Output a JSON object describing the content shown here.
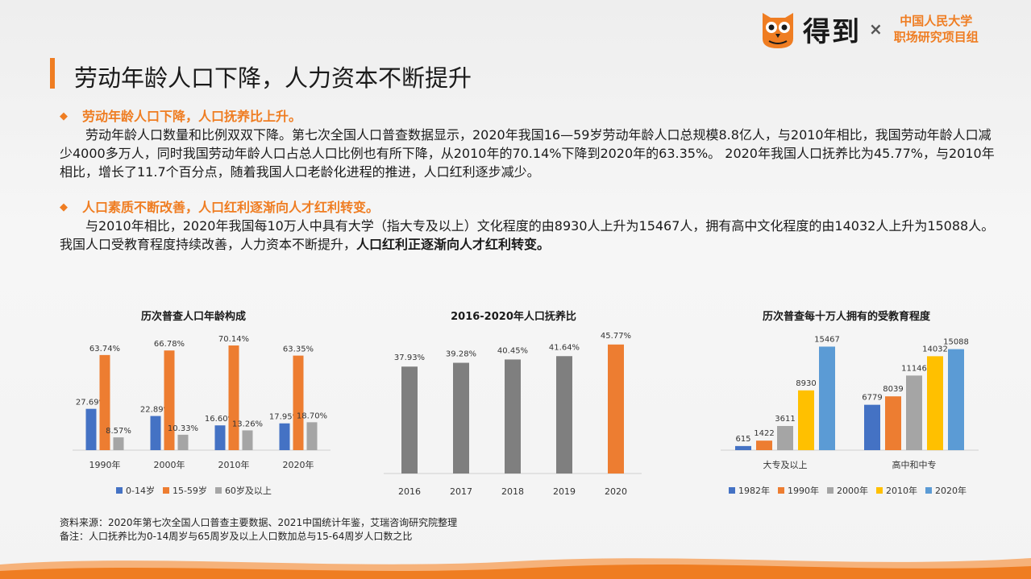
{
  "header": {
    "logo_text": "得到",
    "cross": "×",
    "partner_line1": "中国人民大学",
    "partner_line2": "职场研究项目组"
  },
  "page_title": "劳动年龄人口下降，人力资本不断提升",
  "sections": [
    {
      "heading": "劳动年龄人口下降，人口抚养比上升。",
      "text": "劳动年龄人口数量和比例双双下降。第七次全国人口普查数据显示，2020年我国16—59岁劳动年龄人口总规模8.8亿人，与2010年相比，我国劳动年龄人口减少4000多万人，同时我国劳动年龄人口占总人口比例也有所下降，从2010年的70.14%下降到2020年的63.35%。 2020年我国人口抚养比为45.77%，与2010年相比，增长了11.7个百分点，随着我国人口老龄化进程的推进，人口红利逐步减少。"
    },
    {
      "heading": "人口素质不断改善，人口红利逐渐向人才红利转变。",
      "text": "与2010年相比，2020年我国每10万人中具有大学（指大专及以上）文化程度的由8930人上升为15467人，拥有高中文化程度的由14032人上升为15088人。我国人口受教育程度持续改善，人力资本不断提升，",
      "text_bold": "人口红利正逐渐向人才红利转变。"
    }
  ],
  "chart_data": [
    {
      "type": "bar",
      "title": "历次普查人口年龄构成",
      "categories": [
        "1990年",
        "2000年",
        "2010年",
        "2020年"
      ],
      "series": [
        {
          "name": "0-14岁",
          "color": "#4472c4",
          "values": [
            27.69,
            22.89,
            16.6,
            17.95
          ],
          "labels": [
            "27.69%",
            "22.89%",
            "16.60%",
            "17.95%"
          ]
        },
        {
          "name": "15-59岁",
          "color": "#ed7d31",
          "values": [
            63.74,
            66.78,
            70.14,
            63.35
          ],
          "labels": [
            "63.74%",
            "66.78%",
            "70.14%",
            "63.35%"
          ]
        },
        {
          "name": "60岁及以上",
          "color": "#a5a5a5",
          "values": [
            8.57,
            10.33,
            13.26,
            18.7
          ],
          "labels": [
            "8.57%",
            "10.33%",
            "13.26%",
            "18.70%"
          ]
        }
      ],
      "ylim": [
        0,
        75
      ]
    },
    {
      "type": "bar",
      "title": "2016-2020年人口抚养比",
      "categories": [
        "2016",
        "2017",
        "2018",
        "2019",
        "2020"
      ],
      "values": [
        37.93,
        39.28,
        40.45,
        41.64,
        45.77
      ],
      "labels": [
        "37.93%",
        "39.28%",
        "40.45%",
        "41.64%",
        "45.77%"
      ],
      "colors": [
        "#7f7f7f",
        "#7f7f7f",
        "#7f7f7f",
        "#7f7f7f",
        "#ed7d31"
      ],
      "ylim": [
        0,
        48
      ]
    },
    {
      "type": "bar",
      "title": "历次普查每十万人拥有的受教育程度",
      "categories": [
        "大专及以上",
        "高中和中专"
      ],
      "series": [
        {
          "name": "1982年",
          "color": "#4472c4",
          "values": [
            615,
            6779
          ]
        },
        {
          "name": "1990年",
          "color": "#ed7d31",
          "values": [
            1422,
            8039
          ]
        },
        {
          "name": "2000年",
          "color": "#a5a5a5",
          "values": [
            3611,
            11146
          ]
        },
        {
          "name": "2010年",
          "color": "#ffc000",
          "values": [
            8930,
            14032
          ]
        },
        {
          "name": "2020年",
          "color": "#5b9bd5",
          "values": [
            15467,
            15088
          ]
        }
      ],
      "ylim": [
        0,
        16000
      ]
    }
  ],
  "source": {
    "line1": "资料来源：2020年第七次全国人口普查主要数据、2021中国统计年鉴，艾瑞咨询研究院整理",
    "line2": "备注：人口抚养比为0-14周岁与65周岁及以上人口数加总与15-64周岁人口数之比"
  }
}
